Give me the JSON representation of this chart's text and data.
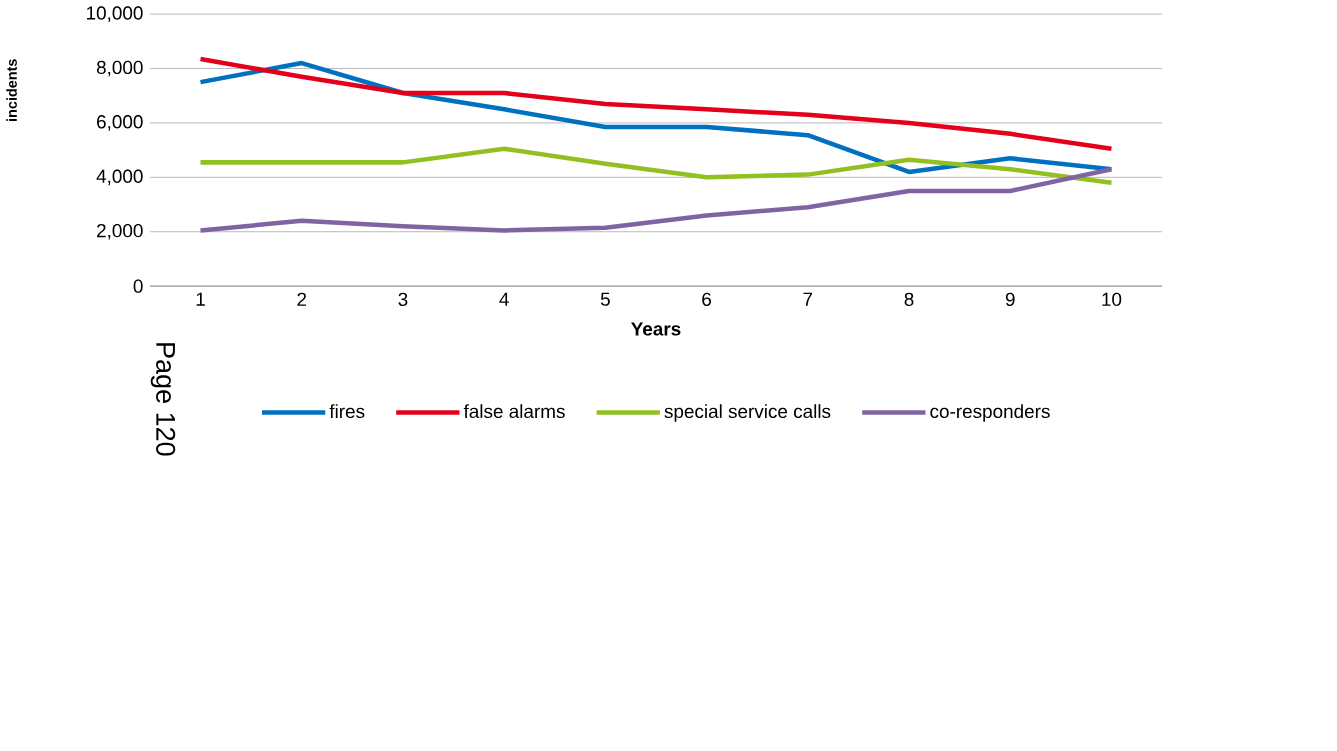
{
  "chart_data": {
    "type": "line",
    "xlabel": "Years",
    "ylabel": "incidents",
    "annotations": [
      "Page 120"
    ],
    "categories": [
      "1",
      "2",
      "3",
      "4",
      "5",
      "6",
      "7",
      "8",
      "9",
      "10"
    ],
    "series": [
      {
        "name": "fires",
        "color": "#0070c0",
        "values": [
          7500,
          8200,
          7100,
          6500,
          5850,
          5850,
          5550,
          4200,
          4700,
          4300
        ]
      },
      {
        "name": "false alarms",
        "color": "#e3001b",
        "values": [
          8350,
          7700,
          7100,
          7100,
          6700,
          6500,
          6300,
          6000,
          5600,
          5050
        ]
      },
      {
        "name": "special service calls",
        "color": "#92c020",
        "values": [
          4550,
          4550,
          4550,
          5050,
          4500,
          4000,
          4100,
          4650,
          4300,
          3800
        ]
      },
      {
        "name": "co-responders",
        "color": "#8064a2",
        "values": [
          2050,
          2400,
          2200,
          2050,
          2150,
          2600,
          2900,
          3500,
          3500,
          4300
        ]
      }
    ],
    "ylim": [
      0,
      10000
    ],
    "yticks": [
      {
        "value": 0,
        "label": "0"
      },
      {
        "value": 2000,
        "label": "2,000"
      },
      {
        "value": 4000,
        "label": "4,000"
      },
      {
        "value": 6000,
        "label": "6,000"
      },
      {
        "value": 8000,
        "label": "8,000"
      },
      {
        "value": 10000,
        "label": "10,000"
      }
    ],
    "grid": "y",
    "legend": "bottom",
    "marker": "none",
    "line_style": "solid"
  }
}
